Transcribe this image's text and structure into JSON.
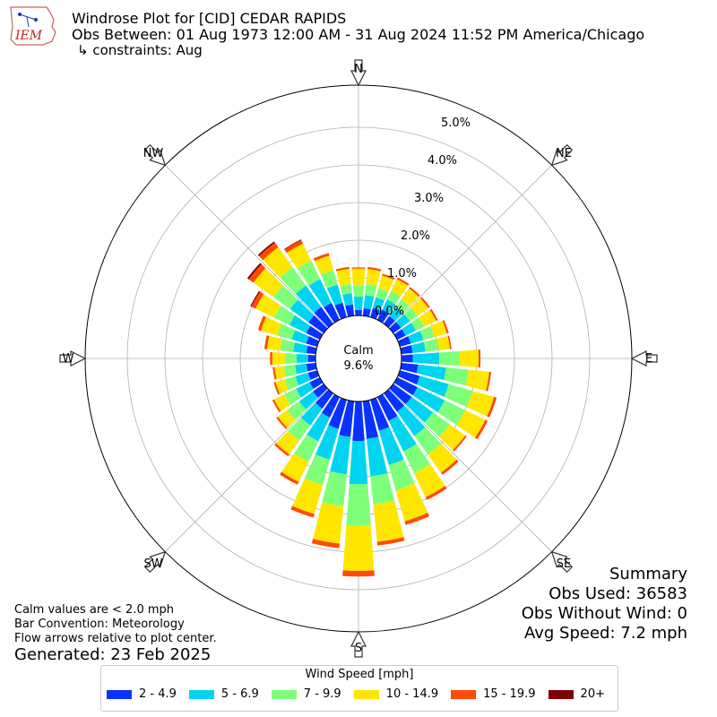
{
  "header": {
    "logo_text": "IEM",
    "title": "Windrose Plot for [CID] CEDAR RAPIDS",
    "obs_between": "Obs Between: 01 Aug 1973 12:00 AM - 31 Aug 2024 11:52 PM America/Chicago",
    "constraints": "↳ constraints: Aug"
  },
  "center": {
    "label": "Calm",
    "value": "9.6%"
  },
  "directions": {
    "N": "N",
    "NE": "NE",
    "E": "E",
    "SE": "SE",
    "S": "S",
    "SW": "SW",
    "W": "W",
    "NW": "NW"
  },
  "radial_ticks": [
    "0.0%",
    "1.0%",
    "2.0%",
    "3.0%",
    "4.0%",
    "5.0%"
  ],
  "notes": {
    "line1": "Calm values are < 2.0 mph",
    "line2": "Bar Convention: Meteorology",
    "line3": "Flow arrows relative to plot center.",
    "generated": "Generated: 23 Feb 2025"
  },
  "summary": {
    "title": "Summary",
    "obs_used": "Obs Used: 36583",
    "obs_without_wind": "Obs Without Wind: 0",
    "avg_speed": "Avg Speed: 7.2 mph"
  },
  "legend": {
    "title": "Wind Speed [mph]",
    "items": [
      {
        "label": "2 - 4.9",
        "color": "#0a32ff"
      },
      {
        "label": "5 - 6.9",
        "color": "#00d4f0"
      },
      {
        "label": "7 - 9.9",
        "color": "#7dff7a"
      },
      {
        "label": "10 - 14.9",
        "color": "#ffe600"
      },
      {
        "label": "15 - 19.9",
        "color": "#ff4a00"
      },
      {
        "label": "20+",
        "color": "#800000"
      }
    ]
  },
  "chart_data": {
    "type": "windrose",
    "r_unit": "%",
    "r_ticks": [
      0,
      1,
      2,
      3,
      4,
      5
    ],
    "calm_percent": 9.6,
    "bins_per_direction": 36,
    "sectors_deg": [
      0,
      10,
      20,
      30,
      40,
      50,
      60,
      70,
      80,
      90,
      100,
      110,
      120,
      130,
      140,
      150,
      160,
      170,
      180,
      190,
      200,
      210,
      220,
      230,
      240,
      250,
      260,
      270,
      280,
      290,
      300,
      310,
      320,
      330,
      340,
      350
    ],
    "speed_bins": [
      "2 - 4.9",
      "5 - 6.9",
      "7 - 9.9",
      "10 - 14.9",
      "15 - 19.9",
      "20+"
    ],
    "series": [
      {
        "name": "2 - 4.9",
        "values": [
          0.15,
          0.2,
          0.25,
          0.3,
          0.25,
          0.25,
          0.25,
          0.3,
          0.3,
          0.3,
          0.45,
          0.55,
          0.6,
          0.6,
          0.6,
          0.7,
          0.85,
          1.0,
          1.05,
          0.95,
          0.8,
          0.6,
          0.5,
          0.35,
          0.3,
          0.25,
          0.25,
          0.2,
          0.25,
          0.3,
          0.4,
          0.5,
          0.55,
          0.5,
          0.4,
          0.3
        ]
      },
      {
        "name": "5 - 6.9",
        "values": [
          0.35,
          0.35,
          0.3,
          0.3,
          0.3,
          0.3,
          0.3,
          0.35,
          0.35,
          0.7,
          0.75,
          0.8,
          0.8,
          0.7,
          0.8,
          0.9,
          0.95,
          1.0,
          1.15,
          1.0,
          0.85,
          0.7,
          0.55,
          0.45,
          0.4,
          0.35,
          0.3,
          0.3,
          0.35,
          0.4,
          0.5,
          0.6,
          0.7,
          0.7,
          0.5,
          0.3
        ]
      },
      {
        "name": "7 - 9.9",
        "values": [
          0.3,
          0.3,
          0.25,
          0.25,
          0.25,
          0.25,
          0.25,
          0.3,
          0.35,
          0.55,
          0.6,
          0.65,
          0.6,
          0.55,
          0.6,
          0.65,
          0.7,
          0.75,
          1.1,
          0.85,
          0.7,
          0.6,
          0.5,
          0.4,
          0.35,
          0.3,
          0.3,
          0.3,
          0.35,
          0.4,
          0.45,
          0.55,
          0.6,
          0.55,
          0.4,
          0.25
        ]
      },
      {
        "name": "10 - 14.9",
        "values": [
          0.45,
          0.4,
          0.35,
          0.35,
          0.35,
          0.35,
          0.35,
          0.35,
          0.3,
          0.5,
          0.55,
          0.6,
          0.6,
          0.5,
          0.6,
          0.7,
          0.85,
          1.0,
          1.2,
          1.0,
          0.8,
          0.6,
          0.45,
          0.3,
          0.3,
          0.25,
          0.25,
          0.35,
          0.35,
          0.45,
          0.55,
          0.65,
          0.65,
          0.5,
          0.4,
          0.4
        ]
      },
      {
        "name": "15 - 19.9",
        "values": [
          0.03,
          0.05,
          0.05,
          0.05,
          0.05,
          0.05,
          0.05,
          0.05,
          0.04,
          0.05,
          0.05,
          0.07,
          0.07,
          0.05,
          0.07,
          0.08,
          0.1,
          0.1,
          0.15,
          0.12,
          0.1,
          0.08,
          0.06,
          0.05,
          0.05,
          0.05,
          0.05,
          0.06,
          0.07,
          0.08,
          0.12,
          0.15,
          0.15,
          0.1,
          0.07,
          0.05
        ]
      },
      {
        "name": "20+",
        "values": [
          0,
          0,
          0,
          0,
          0,
          0,
          0,
          0,
          0,
          0,
          0,
          0,
          0,
          0,
          0,
          0,
          0,
          0,
          0,
          0,
          0,
          0,
          0,
          0,
          0,
          0,
          0,
          0,
          0,
          0,
          0.03,
          0.05,
          0.04,
          0.02,
          0,
          0
        ]
      }
    ],
    "colors": [
      "#0a32ff",
      "#00d4f0",
      "#7dff7a",
      "#ffe600",
      "#ff4a00",
      "#800000"
    ]
  }
}
